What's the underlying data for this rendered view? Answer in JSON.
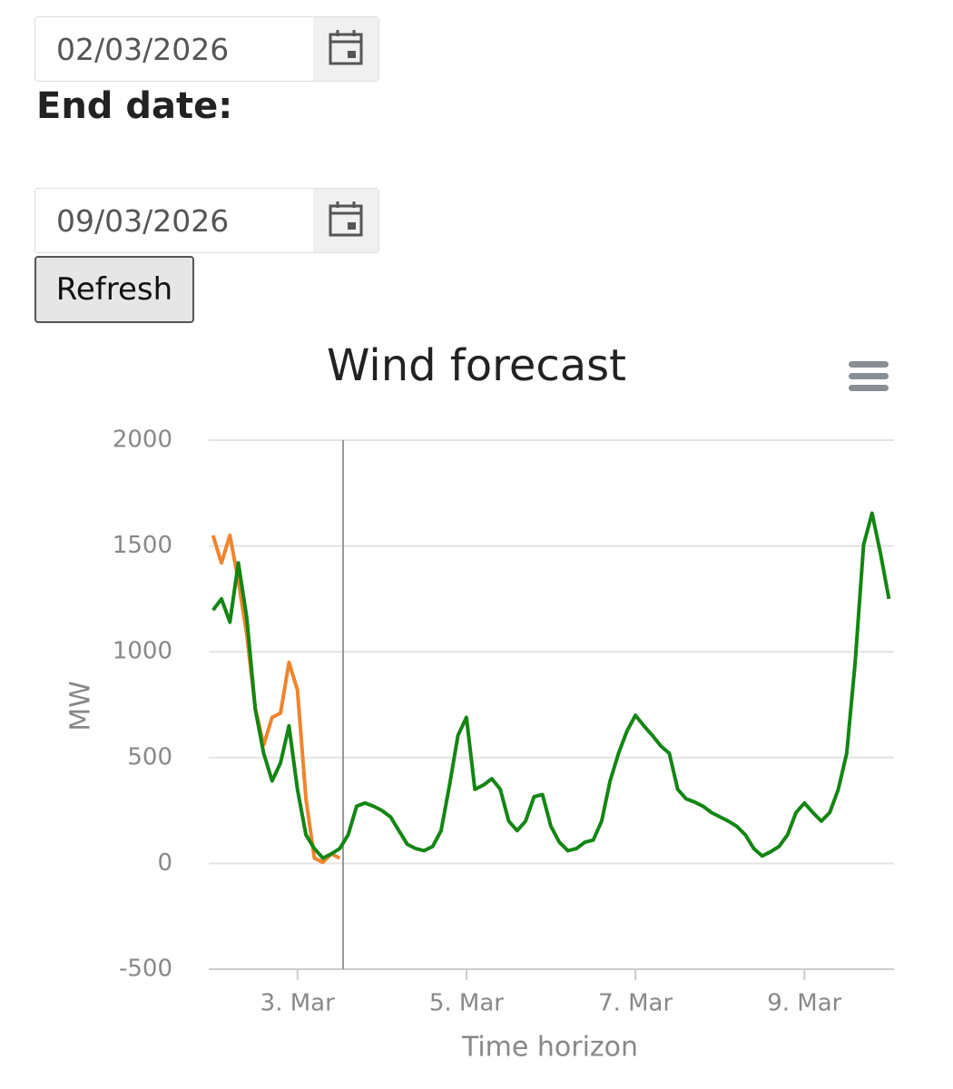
{
  "form": {
    "start_date": "02/03/2026",
    "end_date_label": "End date:",
    "end_date": "09/03/2026",
    "button": "Refresh"
  },
  "chart_data": {
    "type": "line",
    "title": "Wind forecast",
    "x_label": "Time horizon",
    "y_label": "MW",
    "x": [
      2.0,
      2.1,
      2.2,
      2.3,
      2.4,
      2.5,
      2.6,
      2.7,
      2.8,
      2.9,
      3.0,
      3.1,
      3.2,
      3.3,
      3.4,
      3.5,
      3.6,
      3.7,
      3.8,
      3.9,
      4.0,
      4.1,
      4.2,
      4.3,
      4.4,
      4.5,
      4.6,
      4.7,
      4.8,
      4.9,
      5.0,
      5.1,
      5.2,
      5.3,
      5.4,
      5.5,
      5.6,
      5.7,
      5.8,
      5.9,
      6.0,
      6.1,
      6.2,
      6.3,
      6.4,
      6.5,
      6.6,
      6.7,
      6.8,
      6.9,
      7.0,
      7.1,
      7.2,
      7.3,
      7.4,
      7.5,
      7.6,
      7.7,
      7.8,
      7.9,
      8.0,
      8.1,
      8.2,
      8.3,
      8.4,
      8.5,
      8.6,
      8.7,
      8.8,
      8.9,
      9.0,
      9.1,
      9.2,
      9.3,
      9.4,
      9.5,
      9.6,
      9.7,
      9.8,
      9.9,
      10.0
    ],
    "series": [
      {
        "color": "#f0842c",
        "values": [
          1550,
          1420,
          1550,
          1335,
          1080,
          735,
          560,
          690,
          710,
          950,
          820,
          305,
          25,
          5,
          45,
          25,
          null,
          null,
          null,
          null,
          null,
          null,
          null,
          null,
          null,
          null,
          null,
          null,
          null,
          null,
          null,
          null,
          null,
          null,
          null,
          null,
          null,
          null,
          null,
          null,
          null,
          null,
          null,
          null,
          null,
          null,
          null,
          null,
          null,
          null,
          null,
          null,
          null,
          null,
          null,
          null,
          null,
          null,
          null,
          null,
          null,
          null,
          null,
          null,
          null,
          null,
          null,
          null,
          null,
          null,
          null,
          null,
          null,
          null,
          null,
          null,
          null,
          null,
          null,
          null,
          null
        ]
      },
      {
        "color": "#138613",
        "values": [
          1197,
          1250,
          1140,
          1420,
          1160,
          730,
          520,
          390,
          475,
          650,
          350,
          135,
          70,
          25,
          45,
          70,
          135,
          270,
          285,
          270,
          250,
          220,
          155,
          90,
          70,
          60,
          80,
          155,
          370,
          605,
          690,
          350,
          370,
          400,
          350,
          200,
          155,
          200,
          315,
          325,
          175,
          100,
          60,
          70,
          100,
          110,
          200,
          390,
          520,
          625,
          700,
          650,
          605,
          555,
          520,
          350,
          305,
          290,
          270,
          240,
          220,
          200,
          175,
          135,
          70,
          35,
          55,
          80,
          135,
          240,
          285,
          240,
          200,
          240,
          350,
          520,
          950,
          1505,
          1655,
          1465,
          1250
        ]
      }
    ],
    "xlim": [
      1.95,
      10.06
    ],
    "xticks": [
      {
        "value": 3,
        "label": "3. Mar"
      },
      {
        "value": 5,
        "label": "5. Mar"
      },
      {
        "value": 7,
        "label": "7. Mar"
      },
      {
        "value": 9,
        "label": "9. Mar"
      }
    ],
    "plot_line_x": 3.54,
    "ylim": [
      -500,
      2000
    ],
    "yticks": [
      -500,
      0,
      500,
      1000,
      1500,
      2000
    ],
    "grid": true
  }
}
